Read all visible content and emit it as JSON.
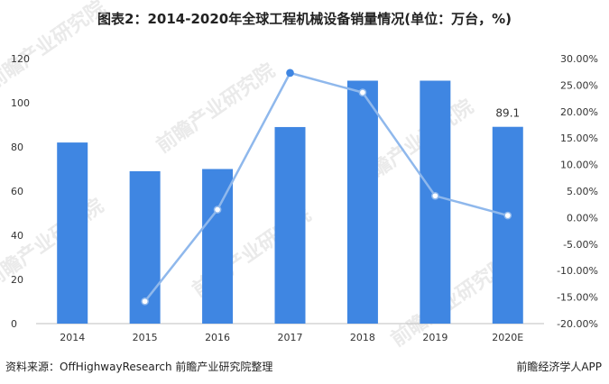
{
  "title": "图表2：2014-2020年全球工程机械设备销量情况(单位：万台，%)",
  "source": "资料来源：OffHighwayResearch 前瞻产业研究院整理",
  "brand": "前瞻经济学人APP",
  "watermark": "前瞻产业研究院",
  "colors": {
    "bar": "#3f86e2",
    "line": "#8fb8ec",
    "marker_fill": "#ffffff"
  },
  "chart_data": {
    "type": "bar",
    "categories": [
      "2014",
      "2015",
      "2016",
      "2017",
      "2018",
      "2019",
      "2020E"
    ],
    "series": [
      {
        "type": "bar",
        "axis": "left",
        "values": [
          82,
          69,
          70,
          89,
          110,
          110,
          89.1
        ]
      },
      {
        "type": "line",
        "axis": "right",
        "values": [
          null,
          -15.8,
          1.5,
          27.3,
          23.6,
          4.1,
          0.4
        ]
      }
    ],
    "data_labels": [
      {
        "category": "2020E",
        "text": "89.1"
      }
    ],
    "y_left": {
      "min": 0,
      "max": 120,
      "ticks": [
        "0",
        "20",
        "40",
        "60",
        "80",
        "100",
        "120"
      ]
    },
    "y_right": {
      "min": -20,
      "max": 30,
      "ticks": [
        "-20.00%",
        "-15.00%",
        "-10.00%",
        "-5.00%",
        "0.00%",
        "5.00%",
        "10.00%",
        "15.00%",
        "20.00%",
        "25.00%",
        "30.00%"
      ]
    },
    "grid": false,
    "legend": "none"
  }
}
